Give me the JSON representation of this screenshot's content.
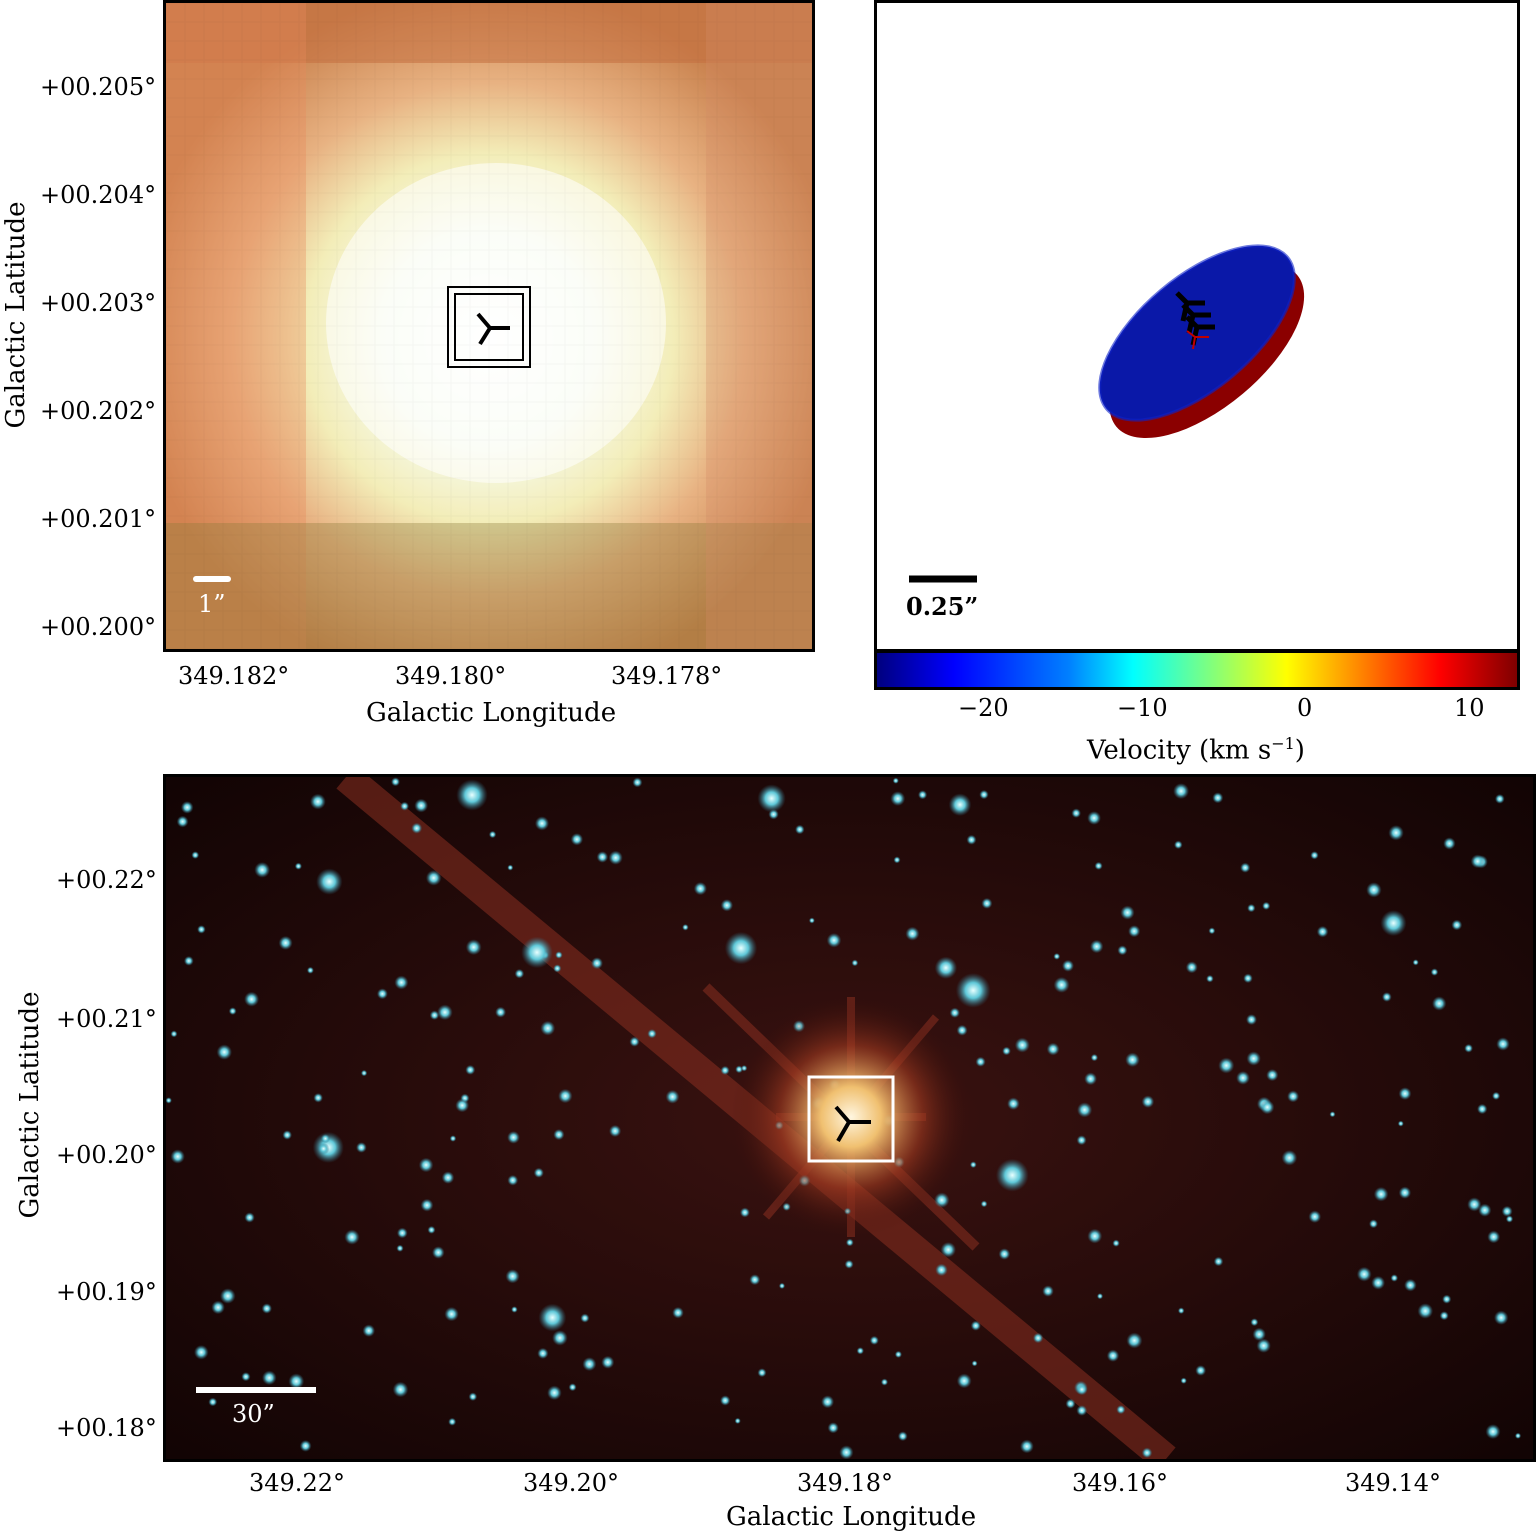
{
  "top_left": {
    "xlabel": "Galactic Longitude",
    "ylabel": "Galactic Latitude",
    "xticks": [
      "349.182°",
      "349.180°",
      "349.178°"
    ],
    "yticks": [
      "+00.205°",
      "+00.204°",
      "+00.203°",
      "+00.202°",
      "+00.201°",
      "+00.200°"
    ],
    "scale_bar": "1”"
  },
  "top_right": {
    "scale_bar": "0.25”",
    "colorbar": {
      "label": "Velocity (km s",
      "label_exp": "−1",
      "label_close": ")",
      "ticks": [
        "−20",
        "−10",
        "0",
        "10"
      ],
      "range": [
        -26,
        13
      ]
    },
    "ellipses": [
      {
        "color": "#8b0000",
        "velocity": 12
      },
      {
        "color": "#0a18a8",
        "velocity": -26
      }
    ]
  },
  "bottom": {
    "xlabel": "Galactic Longitude",
    "ylabel": "Galactic Latitude",
    "xticks": [
      "349.22°",
      "349.20°",
      "349.18°",
      "349.16°",
      "349.14°"
    ],
    "yticks": [
      "+00.22°",
      "+00.21°",
      "+00.20°",
      "+00.19°",
      "+00.18°"
    ],
    "scale_bar": "30”"
  }
}
